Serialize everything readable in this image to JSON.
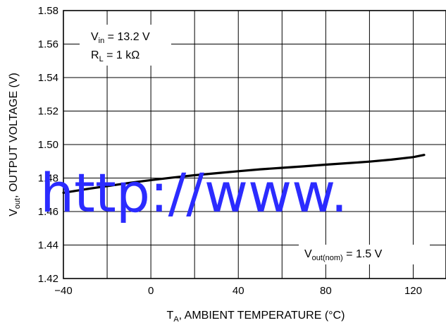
{
  "chart_data": {
    "type": "line",
    "xlabel": {
      "main": "T",
      "sub": "A",
      "rest": ", AMBIENT TEMPERATURE (°C)"
    },
    "ylabel": {
      "main": "V",
      "sub": "out",
      "rest": ", OUTPUT VOLTAGE (V)"
    },
    "xlim": [
      -40,
      135
    ],
    "ylim": [
      1.42,
      1.58
    ],
    "xticks": [
      -40,
      0,
      40,
      80,
      120
    ],
    "xtick_labels": [
      "−40",
      "0",
      "40",
      "80",
      "120"
    ],
    "yticks": [
      1.42,
      1.44,
      1.46,
      1.48,
      1.5,
      1.52,
      1.54,
      1.56,
      1.58
    ],
    "ytick_labels": [
      "1.42",
      "1.44",
      "1.46",
      "1.48",
      "1.50",
      "1.52",
      "1.54",
      "1.56",
      "1.58"
    ],
    "grid": true,
    "series": [
      {
        "x": [
          -40,
          -30,
          -20,
          -10,
          0,
          10,
          20,
          30,
          40,
          50,
          60,
          70,
          80,
          90,
          100,
          110,
          120,
          125
        ],
        "y": [
          1.4712,
          1.4733,
          1.4752,
          1.4771,
          1.4788,
          1.4803,
          1.4817,
          1.4829,
          1.4841,
          1.4852,
          1.4861,
          1.487,
          1.488,
          1.4889,
          1.4898,
          1.491,
          1.4925,
          1.4938
        ]
      }
    ],
    "annotations": [
      {
        "main": "V",
        "sub": "in",
        "rest": " = 13.2 V"
      },
      {
        "main": "R",
        "sub": "L",
        "rest": " = 1 kΩ"
      },
      {
        "main": "V",
        "sub": "out(nom)",
        "rest": " = 1.5 V"
      }
    ]
  },
  "watermark": "http://www."
}
